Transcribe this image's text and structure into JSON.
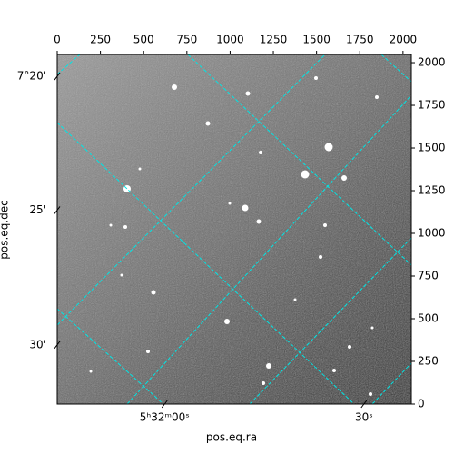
{
  "chart_data": {
    "type": "image",
    "xlabel": "pos.eq.ra",
    "ylabel": "pos.eq.dec",
    "xlim": [
      0,
      2048
    ],
    "ylim": [
      0,
      2048
    ],
    "xticks": [
      0,
      250,
      500,
      750,
      1000,
      1250,
      1500,
      1750,
      2000
    ],
    "yticks": [
      0,
      250,
      500,
      750,
      1000,
      1250,
      1500,
      1750,
      2000
    ],
    "ra_ticks": [
      {
        "value": 621,
        "label": "5ʰ32ᵐ00ˢ"
      },
      {
        "value": 1774,
        "label": "30ˢ"
      }
    ],
    "dec_ticks": [
      {
        "value": 1920,
        "label": "7°20'"
      },
      {
        "value": 1136,
        "label": "25'"
      },
      {
        "value": 347,
        "label": "30'"
      }
    ],
    "grid_color": "#00e5e5"
  }
}
